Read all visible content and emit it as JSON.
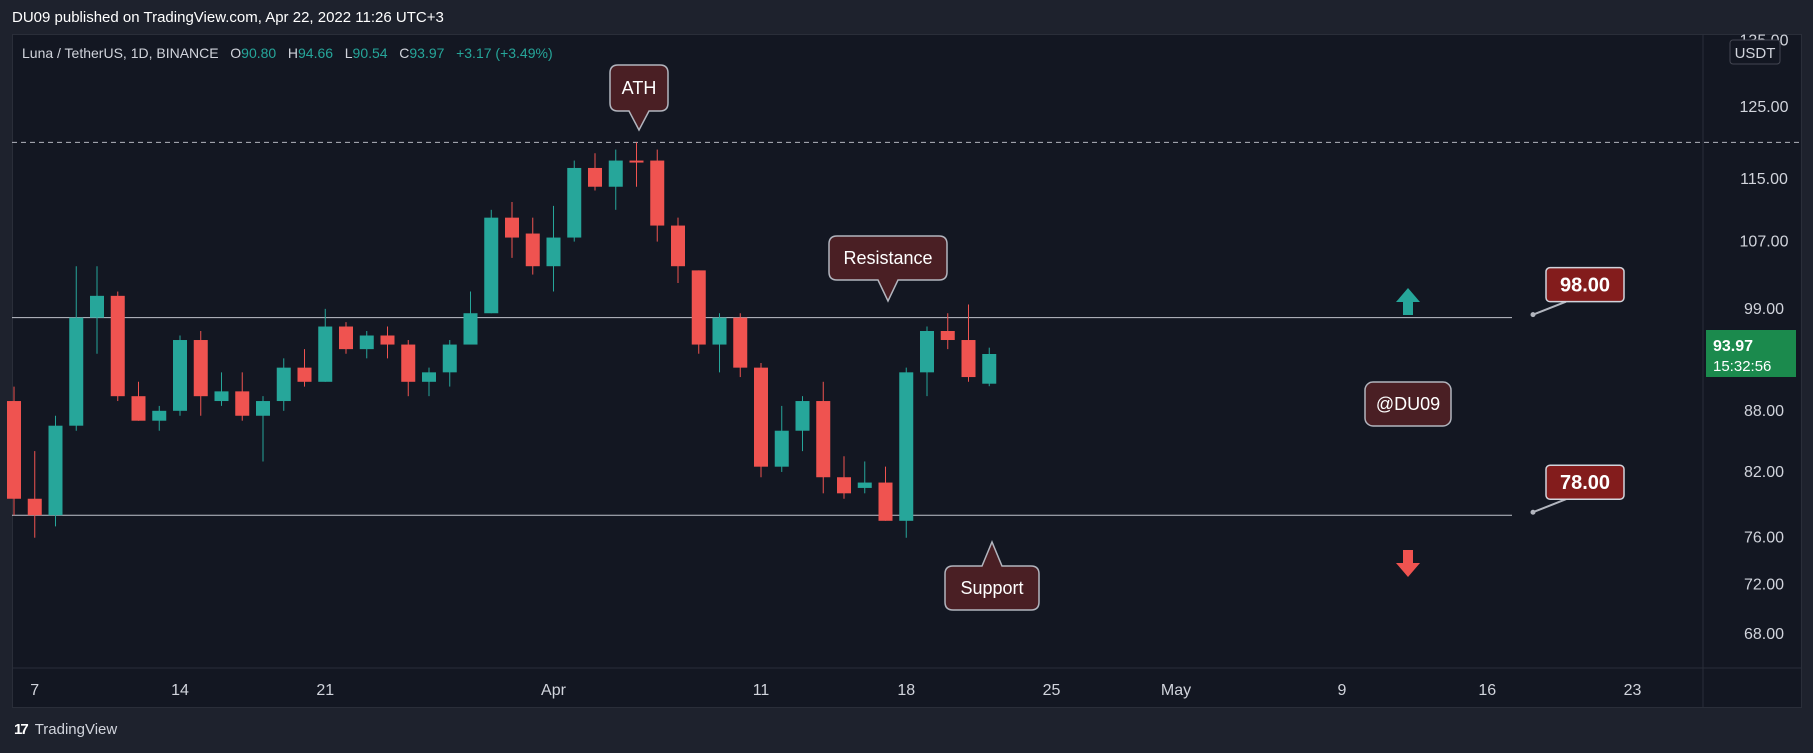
{
  "header": {
    "published": "DU09 published on TradingView.com, Apr 22, 2022 11:26 UTC+3"
  },
  "legend": {
    "symbol": "Luna / TetherUS, 1D, BINANCE",
    "o_label": "O",
    "o": "90.80",
    "h_label": "H",
    "h": "94.66",
    "l_label": "L",
    "l": "90.54",
    "c_label": "C",
    "c": "93.97",
    "change": "+3.17 (+3.49%)"
  },
  "footer": {
    "brand": "TradingView",
    "logo": "17"
  },
  "colors": {
    "up": "#26a69a",
    "down": "#ef5350",
    "background": "#131722",
    "callout": "#4a1f24",
    "price_label": "#831c1c"
  },
  "chart_data": {
    "type": "candlestick",
    "symbol": "Luna / TetherUS",
    "interval": "1D",
    "exchange": "BINANCE",
    "currency": "USDT",
    "ylim": [
      64,
      135
    ],
    "y_scale": "log",
    "y_ticks": [
      "135.00",
      "125.00",
      "115.00",
      "107.00",
      "99.00",
      "88.00",
      "82.00",
      "76.00",
      "72.00",
      "68.00"
    ],
    "x_ticks": [
      "7",
      "14",
      "21",
      "Apr",
      "11",
      "18",
      "25",
      "May",
      "9",
      "16",
      "23"
    ],
    "current_price": "93.97",
    "countdown": "15:32:56",
    "candles": [
      {
        "date": "2022-03-06",
        "o": 89.0,
        "h": 90.5,
        "l": 78.0,
        "c": 79.5
      },
      {
        "date": "2022-03-07",
        "o": 79.5,
        "h": 84.0,
        "l": 76.0,
        "c": 78.0
      },
      {
        "date": "2022-03-08",
        "o": 78.0,
        "h": 87.5,
        "l": 77.0,
        "c": 86.5
      },
      {
        "date": "2022-03-09",
        "o": 86.5,
        "h": 104.0,
        "l": 86.0,
        "c": 98.0
      },
      {
        "date": "2022-03-10",
        "o": 98.0,
        "h": 104.0,
        "l": 94.0,
        "c": 100.5
      },
      {
        "date": "2022-03-11",
        "o": 100.5,
        "h": 101.0,
        "l": 89.0,
        "c": 89.5
      },
      {
        "date": "2022-03-12",
        "o": 89.5,
        "h": 91.0,
        "l": 87.0,
        "c": 87.0
      },
      {
        "date": "2022-03-13",
        "o": 87.0,
        "h": 88.5,
        "l": 86.0,
        "c": 88.0
      },
      {
        "date": "2022-03-14",
        "o": 88.0,
        "h": 96.0,
        "l": 87.5,
        "c": 95.5
      },
      {
        "date": "2022-03-15",
        "o": 95.5,
        "h": 96.5,
        "l": 87.5,
        "c": 89.5
      },
      {
        "date": "2022-03-16",
        "o": 89.0,
        "h": 92.0,
        "l": 88.5,
        "c": 90.0
      },
      {
        "date": "2022-03-17",
        "o": 90.0,
        "h": 92.0,
        "l": 87.0,
        "c": 87.5
      },
      {
        "date": "2022-03-18",
        "o": 87.5,
        "h": 89.5,
        "l": 83.0,
        "c": 89.0
      },
      {
        "date": "2022-03-19",
        "o": 89.0,
        "h": 93.5,
        "l": 88.0,
        "c": 92.5
      },
      {
        "date": "2022-03-20",
        "o": 92.5,
        "h": 94.5,
        "l": 90.5,
        "c": 91.0
      },
      {
        "date": "2022-03-21",
        "o": 91.0,
        "h": 99.0,
        "l": 91.0,
        "c": 97.0
      },
      {
        "date": "2022-03-22",
        "o": 97.0,
        "h": 97.5,
        "l": 94.0,
        "c": 94.5
      },
      {
        "date": "2022-03-23",
        "o": 94.5,
        "h": 96.5,
        "l": 93.5,
        "c": 96.0
      },
      {
        "date": "2022-03-24",
        "o": 96.0,
        "h": 97.0,
        "l": 93.5,
        "c": 95.0
      },
      {
        "date": "2022-03-25",
        "o": 95.0,
        "h": 95.5,
        "l": 89.5,
        "c": 91.0
      },
      {
        "date": "2022-03-26",
        "o": 91.0,
        "h": 92.5,
        "l": 89.5,
        "c": 92.0
      },
      {
        "date": "2022-03-27",
        "o": 92.0,
        "h": 95.5,
        "l": 90.5,
        "c": 95.0
      },
      {
        "date": "2022-03-28",
        "o": 95.0,
        "h": 101.0,
        "l": 95.0,
        "c": 98.5
      },
      {
        "date": "2022-03-29",
        "o": 98.5,
        "h": 111.0,
        "l": 98.5,
        "c": 110.0
      },
      {
        "date": "2022-03-30",
        "o": 110.0,
        "h": 112.0,
        "l": 105.0,
        "c": 107.5
      },
      {
        "date": "2022-03-31",
        "o": 108.0,
        "h": 110.0,
        "l": 103.0,
        "c": 104.0
      },
      {
        "date": "2022-04-01",
        "o": 104.0,
        "h": 111.5,
        "l": 101.0,
        "c": 107.5
      },
      {
        "date": "2022-04-02",
        "o": 107.5,
        "h": 117.5,
        "l": 107.0,
        "c": 116.5
      },
      {
        "date": "2022-04-03",
        "o": 116.5,
        "h": 118.5,
        "l": 113.5,
        "c": 114.0
      },
      {
        "date": "2022-04-04",
        "o": 114.0,
        "h": 119.0,
        "l": 111.0,
        "c": 117.5
      },
      {
        "date": "2022-04-05",
        "o": 117.5,
        "h": 120.0,
        "l": 114.0,
        "c": 117.3
      },
      {
        "date": "2022-04-06",
        "o": 117.5,
        "h": 119.0,
        "l": 107.0,
        "c": 109.0
      },
      {
        "date": "2022-04-07",
        "o": 109.0,
        "h": 110.0,
        "l": 102.0,
        "c": 104.0
      },
      {
        "date": "2022-04-08",
        "o": 103.5,
        "h": 103.5,
        "l": 94.0,
        "c": 95.0
      },
      {
        "date": "2022-04-09",
        "o": 95.0,
        "h": 98.5,
        "l": 92.0,
        "c": 98.0
      },
      {
        "date": "2022-04-10",
        "o": 98.0,
        "h": 98.5,
        "l": 91.5,
        "c": 92.5
      },
      {
        "date": "2022-04-11",
        "o": 92.5,
        "h": 93.0,
        "l": 81.5,
        "c": 82.5
      },
      {
        "date": "2022-04-12",
        "o": 82.5,
        "h": 88.5,
        "l": 82.0,
        "c": 86.0
      },
      {
        "date": "2022-04-13",
        "o": 86.0,
        "h": 89.5,
        "l": 84.0,
        "c": 89.0
      },
      {
        "date": "2022-04-14",
        "o": 89.0,
        "h": 91.0,
        "l": 80.0,
        "c": 81.5
      },
      {
        "date": "2022-04-15",
        "o": 81.5,
        "h": 83.5,
        "l": 79.5,
        "c": 80.0
      },
      {
        "date": "2022-04-16",
        "o": 80.5,
        "h": 83.0,
        "l": 80.0,
        "c": 81.0
      },
      {
        "date": "2022-04-17",
        "o": 81.0,
        "h": 82.5,
        "l": 77.5,
        "c": 77.5
      },
      {
        "date": "2022-04-18",
        "o": 77.5,
        "h": 92.5,
        "l": 76.0,
        "c": 92.0
      },
      {
        "date": "2022-04-19",
        "o": 92.0,
        "h": 97.0,
        "l": 89.5,
        "c": 96.5
      },
      {
        "date": "2022-04-20",
        "o": 96.5,
        "h": 98.5,
        "l": 94.5,
        "c": 95.5
      },
      {
        "date": "2022-04-21",
        "o": 95.5,
        "h": 99.5,
        "l": 91.0,
        "c": 91.5
      },
      {
        "date": "2022-04-22",
        "o": 90.8,
        "h": 94.66,
        "l": 90.54,
        "c": 93.97
      }
    ],
    "lines": {
      "ath": 120.0,
      "resistance": 98.0,
      "support": 78.0
    },
    "annotations": {
      "ath": "ATH",
      "resistance": "Resistance",
      "support": "Support",
      "watermark": "@DU09",
      "resistance_price": "98.00",
      "support_price": "78.00"
    }
  }
}
